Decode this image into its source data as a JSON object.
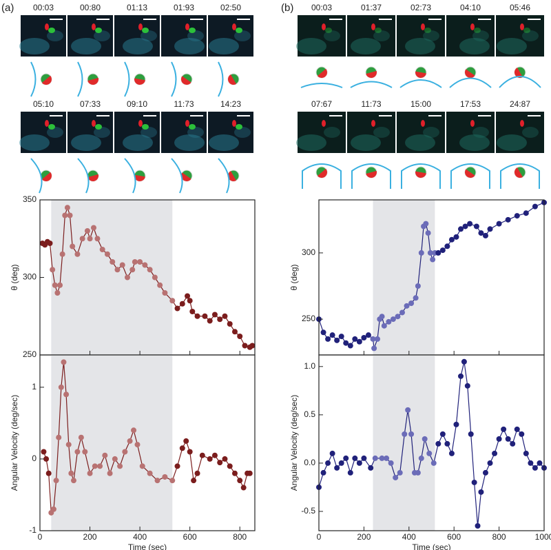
{
  "panel_labels": [
    "(a)",
    "(b)"
  ],
  "frames": [
    {
      "times": [
        "00:03",
        "00:80",
        "01:13",
        "01:93",
        "02:50"
      ]
    },
    {
      "times": [
        "05:10",
        "07:33",
        "09:10",
        "11:73",
        "14:23"
      ]
    },
    {
      "times": [
        "00:03",
        "01:37",
        "02:73",
        "04:10",
        "05:46"
      ]
    },
    {
      "times": [
        "07:67",
        "11:73",
        "15:00",
        "17:53",
        "24:87"
      ]
    }
  ],
  "chart_data": [
    {
      "type": "line",
      "ylabel": "θ (deg)",
      "x": [
        10,
        20,
        30,
        40,
        50,
        60,
        70,
        80,
        90,
        100,
        110,
        120,
        130,
        150,
        170,
        190,
        200,
        215,
        230,
        250,
        270,
        290,
        310,
        330,
        350,
        370,
        380,
        400,
        420,
        440,
        460,
        480,
        500,
        530,
        550,
        570,
        590,
        600,
        610,
        630,
        660,
        680,
        700,
        720,
        740,
        760,
        780,
        800,
        820,
        840,
        850
      ],
      "series": [
        {
          "color": "#7b1d1d",
          "span_color": "#b87272",
          "values": [
            322,
            321,
            323,
            322,
            305,
            295,
            290,
            295,
            315,
            340,
            345,
            340,
            320,
            315,
            325,
            330,
            325,
            332,
            325,
            318,
            315,
            310,
            305,
            308,
            300,
            305,
            310,
            310,
            308,
            305,
            300,
            295,
            290,
            285,
            280,
            283,
            288,
            285,
            278,
            275,
            275,
            272,
            276,
            273,
            275,
            270,
            265,
            262,
            256,
            255,
            256
          ]
        }
      ],
      "span": [
        45,
        530
      ],
      "span_fill": "#e4e5e8",
      "xlim": [
        0,
        860
      ],
      "xticks": [
        0,
        200,
        400,
        600,
        800
      ],
      "ylim": [
        250,
        350
      ],
      "yticks": [
        250,
        300,
        350
      ]
    },
    {
      "type": "line",
      "ylabel": "Angular Velocity (deg/sec)",
      "xlabel": "Time (sec)",
      "x": [
        15,
        25,
        35,
        45,
        55,
        65,
        75,
        85,
        95,
        105,
        115,
        125,
        135,
        150,
        165,
        180,
        200,
        220,
        240,
        260,
        280,
        300,
        320,
        340,
        360,
        375,
        390,
        410,
        440,
        470,
        500,
        530,
        550,
        570,
        585,
        600,
        615,
        630,
        650,
        680,
        700,
        720,
        740,
        760,
        780,
        800,
        815,
        830,
        840
      ],
      "series": [
        {
          "color": "#7b1d1d",
          "span_color": "#b87272",
          "values": [
            0.1,
            0,
            -0.2,
            -0.75,
            -0.7,
            -0.3,
            0.3,
            1.0,
            1.35,
            0.9,
            0.2,
            -0.2,
            -0.3,
            0.1,
            0.3,
            0.1,
            -0.2,
            -0.1,
            -0.1,
            0.05,
            -0.2,
            0,
            -0.1,
            0.1,
            0.25,
            0.4,
            0.2,
            -0.1,
            -0.2,
            -0.3,
            -0.25,
            -0.3,
            -0.1,
            0.15,
            0.25,
            0.1,
            -0.3,
            -0.2,
            0.05,
            0,
            0.05,
            -0.05,
            0,
            -0.1,
            -0.2,
            -0.3,
            -0.4,
            -0.2,
            -0.2
          ]
        }
      ],
      "span": [
        45,
        530
      ],
      "span_fill": "#e4e5e8",
      "xlim": [
        0,
        860
      ],
      "xticks": [
        0,
        200,
        400,
        600,
        800
      ],
      "ylim": [
        -1,
        1.45
      ],
      "yticks": [
        -1,
        0,
        1
      ]
    },
    {
      "type": "line",
      "ylabel": "θ (deg)",
      "x": [
        0,
        20,
        40,
        60,
        80,
        100,
        120,
        140,
        160,
        180,
        200,
        220,
        240,
        245,
        260,
        270,
        280,
        290,
        310,
        330,
        350,
        370,
        390,
        410,
        430,
        440,
        455,
        465,
        475,
        485,
        495,
        505,
        515,
        530,
        550,
        570,
        590,
        610,
        630,
        650,
        670,
        700,
        720,
        740,
        760,
        800,
        840,
        880,
        920,
        960,
        1000
      ],
      "series": [
        {
          "color": "#20217a",
          "span_color": "#6b6cb8",
          "values": [
            250,
            240,
            235,
            238,
            234,
            237,
            232,
            230,
            235,
            233,
            236,
            238,
            235,
            228,
            235,
            250,
            252,
            245,
            248,
            250,
            252,
            255,
            260,
            262,
            266,
            275,
            300,
            320,
            322,
            315,
            300,
            295,
            300,
            300,
            302,
            305,
            310,
            312,
            318,
            320,
            322,
            320,
            315,
            313,
            318,
            322,
            325,
            328,
            330,
            335,
            338
          ]
        }
      ],
      "span": [
        240,
        515
      ],
      "span_fill": "#e4e5e8",
      "xlim": [
        0,
        1000
      ],
      "xticks": [
        0,
        200,
        400,
        600,
        800,
        1000
      ],
      "ylim": [
        223,
        340
      ],
      "yticks": [
        250,
        300
      ]
    },
    {
      "type": "line",
      "ylabel": "Angular Velocity (deg/sec)",
      "xlabel": "Time (sec)",
      "x": [
        0,
        20,
        40,
        60,
        80,
        100,
        120,
        140,
        160,
        180,
        200,
        230,
        250,
        280,
        300,
        320,
        340,
        360,
        380,
        395,
        410,
        425,
        440,
        455,
        470,
        490,
        510,
        530,
        550,
        570,
        590,
        610,
        630,
        645,
        660,
        675,
        690,
        705,
        720,
        740,
        760,
        780,
        800,
        820,
        840,
        860,
        880,
        900,
        920,
        940,
        960,
        980,
        1000
      ],
      "series": [
        {
          "color": "#20217a",
          "span_color": "#6b6cb8",
          "values": [
            -0.25,
            -0.1,
            0,
            0.1,
            -0.05,
            0,
            0.05,
            -0.1,
            0.05,
            0,
            0.05,
            -0.05,
            0.05,
            0.05,
            0.05,
            0,
            -0.15,
            -0.1,
            0.3,
            0.55,
            0.3,
            -0.1,
            -0.1,
            0.05,
            0.25,
            0.1,
            0,
            0.2,
            0.3,
            0.2,
            0.1,
            0.4,
            0.9,
            1.05,
            0.8,
            0.3,
            -0.2,
            -0.65,
            -0.3,
            -0.1,
            0,
            0.1,
            0.25,
            0.35,
            0.25,
            0.2,
            0.35,
            0.3,
            0.1,
            0,
            -0.05,
            0,
            -0.05
          ]
        }
      ],
      "span": [
        240,
        515
      ],
      "span_fill": "#e4e5e8",
      "xlim": [
        0,
        1000
      ],
      "xticks": [
        0,
        200,
        400,
        600,
        800,
        1000
      ],
      "ylim": [
        -0.7,
        1.12
      ],
      "yticks": [
        -0.5,
        {
          "value": 0,
          "label": "0.0"
        },
        0.5,
        {
          "value": 1,
          "label": "1.0"
        }
      ]
    }
  ]
}
